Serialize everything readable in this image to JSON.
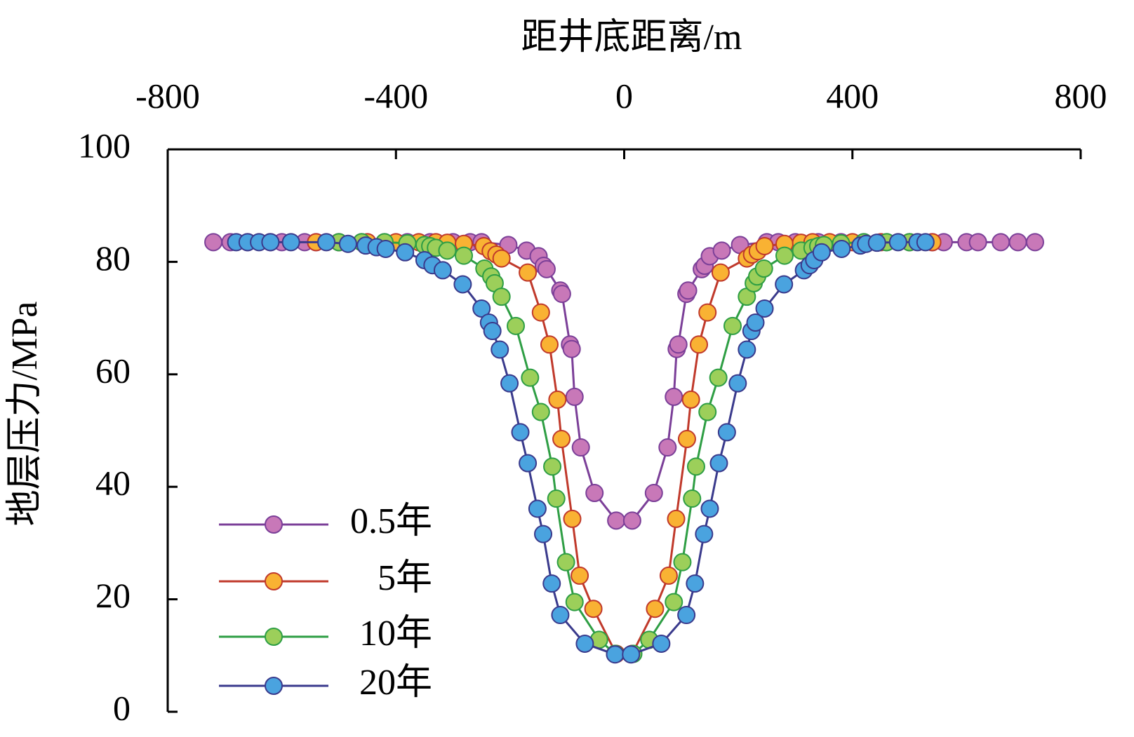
{
  "chart_data": {
    "type": "line",
    "xlabel": "距井底距离/m",
    "ylabel": "地层压力/MPa",
    "xlim": [
      -800,
      800
    ],
    "xticks": [
      -800,
      -400,
      0,
      400,
      800
    ],
    "ylim": [
      0,
      100
    ],
    "yticks": [
      0,
      20,
      40,
      60,
      80,
      100
    ],
    "legend": "lower left",
    "series": [
      {
        "name": "0.5年",
        "color": "#7b3f98",
        "marker_color": "#c878b8",
        "x": [
          -720,
          -690,
          -660,
          -620,
          -600,
          -560,
          -540,
          -500,
          -460,
          -420,
          -380,
          -340,
          -300,
          -270,
          -250,
          -203,
          -171,
          -150,
          -141,
          -136,
          -112,
          -109,
          -95,
          -92,
          -87,
          -76,
          -52,
          -14,
          14,
          52,
          76,
          87,
          92,
          95,
          109,
          112,
          136,
          141,
          150,
          171,
          203,
          250,
          270,
          300,
          340,
          380,
          420,
          460,
          500,
          540,
          560,
          600,
          620,
          660,
          690,
          720
        ],
        "values": [
          83.5,
          83.5,
          83.5,
          83.5,
          83.5,
          83.5,
          83.5,
          83.5,
          83.5,
          83.5,
          83.5,
          83.5,
          83.5,
          83.5,
          83.5,
          83,
          82,
          81,
          79.3,
          78.7,
          74.9,
          74.3,
          65.3,
          64.5,
          56,
          47,
          38.9,
          34,
          34,
          38.9,
          47,
          56,
          64.5,
          65.3,
          74.3,
          74.9,
          78.7,
          79.3,
          81,
          82,
          83,
          83.5,
          83.5,
          83.5,
          83.5,
          83.5,
          83.5,
          83.5,
          83.5,
          83.5,
          83.5,
          83.5,
          83.5,
          83.5,
          83.5,
          83.5
        ]
      },
      {
        "name": "5年",
        "color": "#c0392b",
        "marker_color": "#f9b233",
        "x": [
          -540,
          -500,
          -450,
          -400,
          -360,
          -330,
          -310,
          -281,
          -246,
          -234,
          -224,
          -215,
          -169,
          -146,
          -131,
          -117,
          -110,
          -91,
          -78,
          -54,
          -14,
          14,
          54,
          78,
          91,
          110,
          117,
          131,
          146,
          169,
          215,
          224,
          234,
          246,
          281,
          310,
          330,
          360,
          400,
          450,
          500,
          540
        ],
        "values": [
          83.5,
          83.5,
          83.5,
          83.5,
          83.5,
          83.5,
          83.4,
          83.2,
          82.8,
          81.9,
          81.3,
          80.6,
          78.1,
          71,
          65.3,
          55.5,
          48.5,
          34.3,
          24.2,
          18.3,
          10.3,
          10.3,
          18.3,
          24.2,
          34.3,
          48.5,
          55.5,
          65.3,
          71,
          78.1,
          80.6,
          81.3,
          81.9,
          82.8,
          83.2,
          83.4,
          83.5,
          83.5,
          83.5,
          83.5,
          83.5,
          83.5
        ]
      },
      {
        "name": "10年",
        "color": "#2e9e44",
        "marker_color": "#9ccf5a",
        "x": [
          -500,
          -460,
          -420,
          -380,
          -350,
          -340,
          -330,
          -310,
          -281,
          -245,
          -233,
          -227,
          -215,
          -190,
          -165,
          -146,
          -126,
          -119,
          -102,
          -87,
          -44,
          -16,
          16,
          44,
          87,
          102,
          119,
          126,
          146,
          165,
          190,
          215,
          227,
          233,
          245,
          281,
          310,
          330,
          340,
          350,
          380,
          420,
          460,
          500
        ],
        "values": [
          83.5,
          83.5,
          83.5,
          83.3,
          83,
          82.8,
          82.5,
          82,
          81.1,
          78.8,
          77.4,
          76.2,
          73.8,
          68.6,
          59.4,
          53.3,
          43.6,
          37.9,
          26.6,
          19.5,
          12.8,
          10.3,
          10.3,
          12.8,
          19.5,
          26.6,
          37.9,
          43.6,
          53.3,
          59.4,
          68.6,
          73.8,
          76.2,
          77.4,
          78.8,
          81.1,
          82,
          82.5,
          82.8,
          83,
          83.3,
          83.5,
          83.5,
          83.5
        ]
      },
      {
        "name": "20年",
        "color": "#3a3a8c",
        "marker_color": "#4aa3df",
        "x": [
          -680,
          -660,
          -640,
          -620,
          -584,
          -522,
          -484,
          -453,
          -434,
          -418,
          -384,
          -350,
          -336,
          -318,
          -283,
          -250,
          -237,
          -231,
          -218,
          -201,
          -182,
          -169,
          -152,
          -142,
          -127,
          -112,
          -69,
          -16,
          12,
          65,
          109,
          124,
          140,
          150,
          166,
          180,
          199,
          215,
          223,
          230,
          246,
          280,
          315,
          325,
          333,
          346,
          381,
          414,
          424,
          443,
          480,
          514,
          528
        ],
        "values": [
          83.5,
          83.5,
          83.5,
          83.5,
          83.5,
          83.5,
          83.2,
          82.9,
          82.6,
          82.3,
          81.7,
          80.3,
          79.4,
          78.5,
          76,
          71.7,
          69.2,
          67.7,
          64.4,
          58.4,
          49.7,
          44.2,
          36.1,
          31.6,
          22.8,
          17.2,
          12.1,
          10.2,
          10.2,
          12.1,
          17.2,
          22.8,
          31.6,
          36.1,
          44.2,
          49.7,
          58.4,
          64.4,
          67.7,
          69.2,
          71.7,
          76,
          78.5,
          79.4,
          80.3,
          81.7,
          82.3,
          82.9,
          83.2,
          83.4,
          83.5,
          83.5,
          83.5
        ]
      }
    ]
  }
}
